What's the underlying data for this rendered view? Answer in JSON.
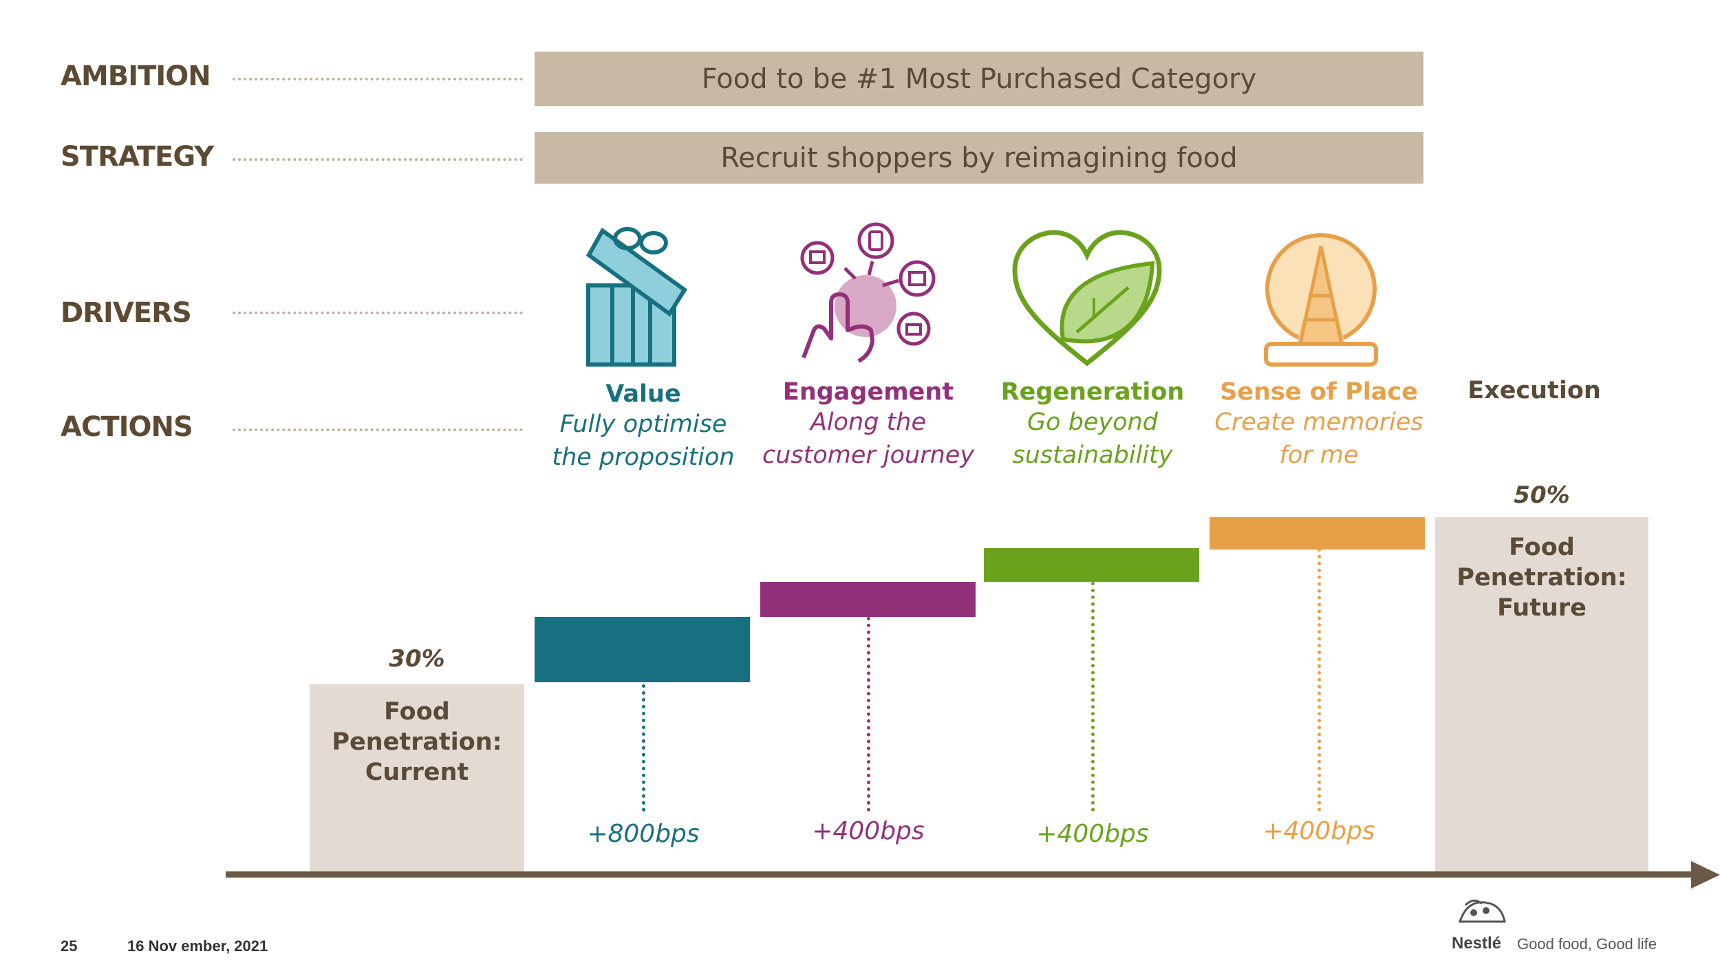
{
  "rows": {
    "ambition": "AMBITION",
    "strategy": "STRATEGY",
    "drivers": "DRIVERS",
    "actions": "ACTIONS"
  },
  "ambition_text": "Food to be #1 Most Purchased Category",
  "strategy_text": "Recruit shoppers by reimagining food",
  "drivers": [
    {
      "title": "Value",
      "line1": "Fully optimise",
      "line2": "the proposition",
      "bps": "+800bps",
      "color": "#17707f",
      "icon": "gift-box-icon"
    },
    {
      "title": "Engagement",
      "line1": "Along the",
      "line2": "customer journey",
      "bps": "+400bps",
      "color": "#93307a",
      "icon": "touch-engagement-icon"
    },
    {
      "title": "Regeneration",
      "line1": "Go beyond",
      "line2": "sustainability",
      "bps": "+400bps",
      "color": "#6aa21c",
      "icon": "heart-leaf-icon"
    },
    {
      "title": "Sense of Place",
      "line1": "Create memories",
      "line2": "for me",
      "bps": "+400bps",
      "color": "#e8a048",
      "icon": "eiffel-snowglobe-icon"
    }
  ],
  "execution_label": "Execution",
  "current": {
    "pct": "30%",
    "line1": "Food",
    "line2": "Penetration:",
    "line3": "Current"
  },
  "future": {
    "pct": "50%",
    "line1": "Food",
    "line2": "Penetration:",
    "line3": "Future"
  },
  "footer": {
    "page": "25",
    "date": "16 Nov ember, 2021",
    "brand": "Nestlé",
    "tagline": "Good food, Good life"
  },
  "colors": {
    "band": "#c8b9a5",
    "box": "#e3dbd3",
    "label": "#5c4a33",
    "axis": "#6b5a45"
  }
}
